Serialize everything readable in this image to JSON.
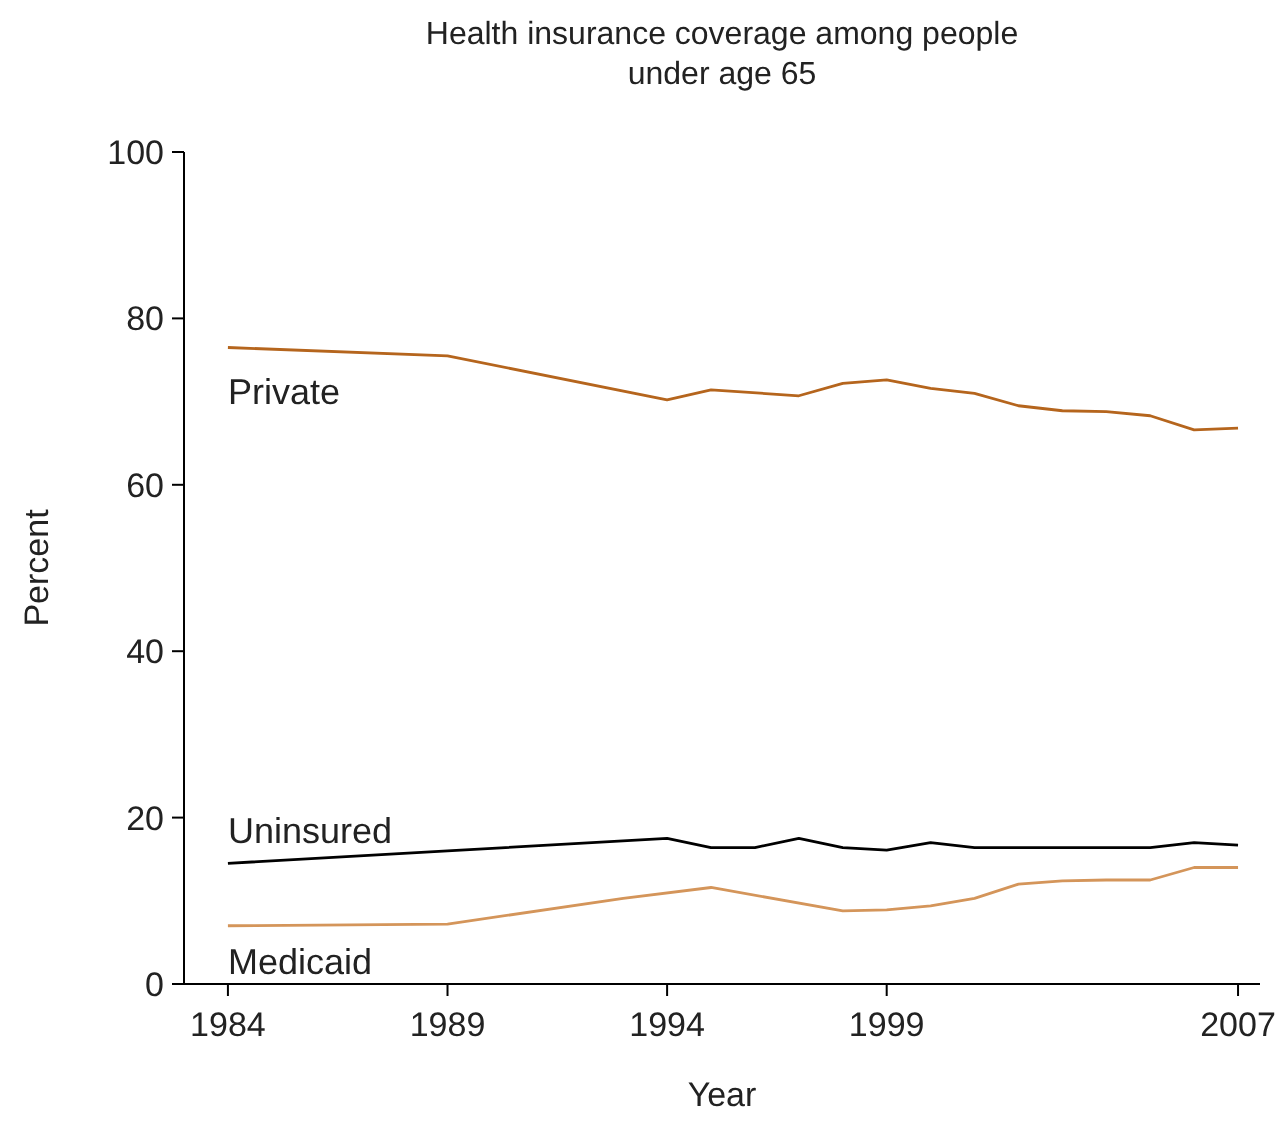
{
  "chart_data": {
    "type": "line",
    "title": "Health insurance coverage among people\nunder age 65",
    "xlabel": "Year",
    "ylabel": "Percent",
    "xlim": [
      1983,
      2007.5
    ],
    "xticks": [
      1984,
      1989,
      1994,
      1999,
      2007
    ],
    "ylim": [
      0,
      100
    ],
    "yticks": [
      0,
      20,
      40,
      60,
      80,
      100
    ],
    "grid": false,
    "marker": "none",
    "line_style": "solid",
    "series": [
      {
        "name": "Private",
        "color": "#b5651d",
        "x": [
          1984,
          1989,
          1994,
          1995,
          1997,
          1998,
          1999,
          2000,
          2001,
          2002,
          2003,
          2004,
          2005,
          2006,
          2007
        ],
        "values": [
          76.5,
          75.5,
          70.2,
          71.4,
          70.7,
          72.2,
          72.6,
          71.6,
          71.0,
          69.5,
          68.9,
          68.8,
          68.3,
          66.6,
          66.8
        ]
      },
      {
        "name": "Uninsured",
        "color": "#000000",
        "x": [
          1984,
          1989,
          1994,
          1995,
          1996,
          1997,
          1998,
          1999,
          2000,
          2001,
          2002,
          2003,
          2004,
          2005,
          2006,
          2007
        ],
        "values": [
          14.5,
          16.0,
          17.5,
          16.4,
          16.4,
          17.5,
          16.4,
          16.1,
          17.0,
          16.4,
          16.4,
          16.4,
          16.4,
          16.4,
          17.0,
          16.7
        ]
      },
      {
        "name": "Medicaid",
        "color": "#d4955a",
        "x": [
          1984,
          1989,
          1993,
          1995,
          1998,
          1999,
          2000,
          2001,
          2002,
          2003,
          2004,
          2005,
          2006,
          2007
        ],
        "values": [
          7.0,
          7.2,
          10.3,
          11.6,
          8.8,
          8.9,
          9.4,
          10.3,
          12.0,
          12.4,
          12.5,
          12.5,
          14.0,
          14.0
        ]
      }
    ]
  }
}
